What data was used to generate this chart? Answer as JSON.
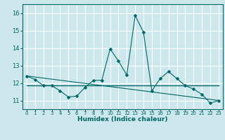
{
  "xlabel": "Humidex (Indice chaleur)",
  "bg_color": "#cce8ec",
  "grid_color": "#ffffff",
  "line_color": "#006666",
  "xlim": [
    -0.5,
    23.5
  ],
  "ylim": [
    10.5,
    16.5
  ],
  "yticks": [
    11,
    12,
    13,
    14,
    15,
    16
  ],
  "xticks": [
    0,
    1,
    2,
    3,
    4,
    5,
    6,
    7,
    8,
    9,
    10,
    11,
    12,
    13,
    14,
    15,
    16,
    17,
    18,
    19,
    20,
    21,
    22,
    23
  ],
  "line1_x": [
    0,
    1,
    2,
    3,
    4,
    5,
    6,
    7,
    8,
    9,
    10,
    11,
    12,
    13,
    14,
    15,
    16,
    17,
    18,
    19,
    20,
    21,
    22,
    23
  ],
  "line1_y": [
    12.4,
    12.2,
    11.85,
    11.85,
    11.55,
    11.2,
    11.25,
    11.75,
    12.15,
    12.15,
    13.95,
    13.25,
    12.45,
    15.85,
    14.9,
    11.55,
    12.25,
    12.65,
    12.25,
    11.85,
    11.65,
    11.35,
    10.85,
    11.0
  ],
  "line2_x": [
    0,
    23
  ],
  "line2_y": [
    11.85,
    11.85
  ],
  "line3_x": [
    0,
    23
  ],
  "line3_y": [
    12.4,
    11.0
  ],
  "markersize": 2.5
}
